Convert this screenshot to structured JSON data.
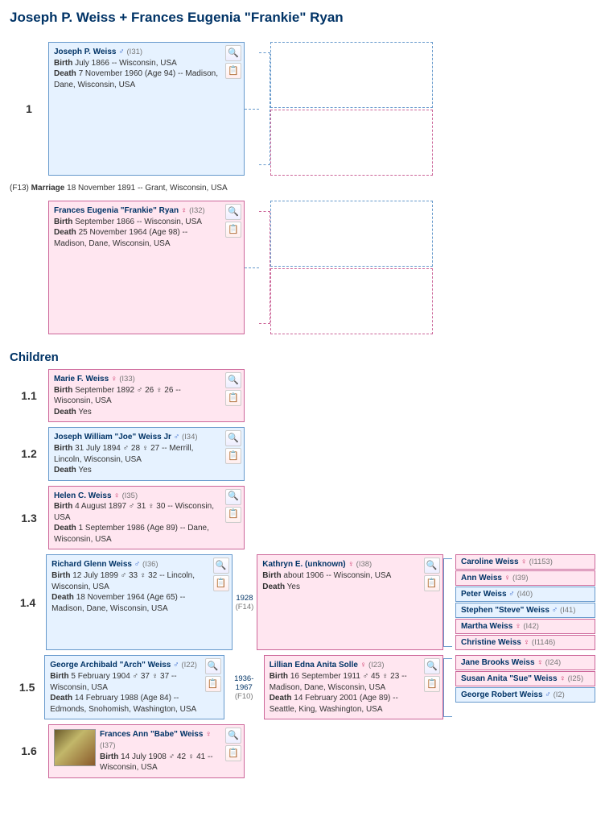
{
  "title": "Joseph P. Weiss + Frances Eugenia \"Frankie\" Ryan",
  "marriage_line_prefix": "(F13)  ",
  "marriage_label": "Marriage",
  "marriage_text": " 18 November 1891 -- Grant, Wisconsin, USA",
  "children_heading": "Children",
  "labels": {
    "birth": "Birth",
    "death": "Death"
  },
  "icons": {
    "zoom": "🔍",
    "chart": "📋"
  },
  "parent1": {
    "num": "1",
    "sex": "male",
    "sex_sym": "♂",
    "idref": "(I31)",
    "name": "Joseph P. Weiss",
    "birth": "July 1866 -- Wisconsin, USA",
    "death": "7 November 1960 (Age 94) -- Madison, Dane, Wisconsin, USA"
  },
  "parent2": {
    "sex": "female",
    "sex_sym": "♀",
    "idref": "(I32)",
    "name": "Frances Eugenia \"Frankie\" Ryan",
    "birth": "September 1866 -- Wisconsin, USA",
    "death": "25 November 1964 (Age 98) -- Madison, Dane, Wisconsin, USA"
  },
  "children": [
    {
      "num": "1.1",
      "sex": "female",
      "sex_sym": "♀",
      "idref": "(I33)",
      "name": "Marie F. Weiss",
      "birth": "September 1892  ♂ 26  ♀ 26 -- Wisconsin, USA",
      "death": "Yes"
    },
    {
      "num": "1.2",
      "sex": "male",
      "sex_sym": "♂",
      "idref": "(I34)",
      "name": "Joseph William \"Joe\" Weiss Jr",
      "birth": "31 July 1894  ♂ 28  ♀ 27 -- Merrill, Lincoln, Wisconsin, USA",
      "death": "Yes"
    },
    {
      "num": "1.3",
      "sex": "female",
      "sex_sym": "♀",
      "idref": "(I35)",
      "name": "Helen C. Weiss",
      "birth": "4 August 1897  ♂ 31  ♀ 30 -- Wisconsin, USA",
      "death": "1 September 1986 (Age 89) -- Dane, Wisconsin, USA"
    },
    {
      "num": "1.4",
      "sex": "male",
      "sex_sym": "♂",
      "idref": "(I36)",
      "name": "Richard Glenn Weiss",
      "birth": "12 July 1899  ♂ 33  ♀ 32 -- Lincoln, Wisconsin, USA",
      "death": "18 November 1964 (Age 65) -- Madison, Dane, Wisconsin, USA",
      "fam": {
        "years": "1928",
        "fref": "(F14)"
      },
      "spouse": {
        "sex": "female",
        "sex_sym": "♀",
        "idref": "(I38)",
        "name": "Kathryn E. (unknown)",
        "birth": "about 1906 -- Wisconsin, USA",
        "death": "Yes"
      },
      "gc": [
        {
          "sex": "female",
          "sex_sym": "♀",
          "idref": "(I1153)",
          "name": "Caroline Weiss"
        },
        {
          "sex": "female",
          "sex_sym": "♀",
          "idref": "(I39)",
          "name": "Ann Weiss"
        },
        {
          "sex": "male",
          "sex_sym": "♂",
          "idref": "(I40)",
          "name": "Peter Weiss"
        },
        {
          "sex": "male",
          "sex_sym": "♂",
          "idref": "(I41)",
          "name": "Stephen \"Steve\" Weiss"
        },
        {
          "sex": "female",
          "sex_sym": "♀",
          "idref": "(I42)",
          "name": "Martha Weiss"
        },
        {
          "sex": "female",
          "sex_sym": "♀",
          "idref": "(I1146)",
          "name": "Christine Weiss"
        }
      ]
    },
    {
      "num": "1.5",
      "sex": "male",
      "sex_sym": "♂",
      "idref": "(I22)",
      "name": "George Archibald \"Arch\" Weiss",
      "birth": "5 February 1904  ♂ 37  ♀ 37 -- Wisconsin, USA",
      "death": "14 February 1988 (Age 84) -- Edmonds, Snohomish, Washington, USA",
      "fam": {
        "years": "1936-1967",
        "fref": "(F10)"
      },
      "spouse": {
        "sex": "female",
        "sex_sym": "♀",
        "idref": "(I23)",
        "name": "Lillian Edna Anita Solle",
        "birth": "16 September 1911  ♂ 45  ♀ 23 -- Madison, Dane, Wisconsin, USA",
        "death": "14 February 2001 (Age 89) -- Seattle, King, Washington, USA"
      },
      "gc": [
        {
          "sex": "female",
          "sex_sym": "♀",
          "idref": "(I24)",
          "name": "Jane Brooks Weiss"
        },
        {
          "sex": "female",
          "sex_sym": "♀",
          "idref": "(I25)",
          "name": "Susan Anita \"Sue\" Weiss"
        },
        {
          "sex": "male",
          "sex_sym": "♂",
          "idref": "(I2)",
          "name": "George Robert Weiss"
        }
      ]
    },
    {
      "num": "1.6",
      "sex": "female",
      "sex_sym": "♀",
      "idref": "(I37)",
      "name": "Frances Ann \"Babe\" Weiss",
      "birth": "14 July 1908  ♂ 42  ♀ 41 -- Wisconsin, USA",
      "thumb": true
    }
  ]
}
